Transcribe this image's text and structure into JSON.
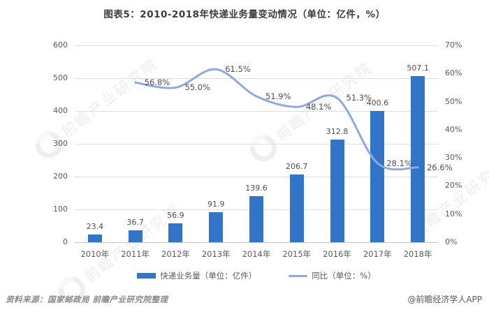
{
  "title": "图表5：2010-2018年快递业务量变动情况（单位：亿件，%）",
  "footer": {
    "source": "资料来源：国家邮政局 前瞻产业研究院整理",
    "brand": "@前瞻经济学人APP"
  },
  "watermark": {
    "text": "前瞻产业研究院"
  },
  "colors": {
    "bar": "#3174C8",
    "line": "#8FAADC",
    "grid": "#dcdcdc",
    "axis_text": "#595959",
    "label_text": "#4d4d4d"
  },
  "legend": [
    {
      "label": "快递业务量（单位：亿件）",
      "marker": "bar"
    },
    {
      "label": "同比（单位：%）",
      "marker": "line"
    }
  ],
  "chart_data": {
    "type": "bar",
    "title": "图表5：2010-2018年快递业务量变动情况（单位：亿件，%）",
    "categories": [
      "2010年",
      "2011年",
      "2012年",
      "2013年",
      "2014年",
      "2015年",
      "2016年",
      "2017年",
      "2018年"
    ],
    "series": [
      {
        "name": "快递业务量（单位：亿件）",
        "type": "bar",
        "axis": "left",
        "values": [
          23.4,
          36.7,
          56.9,
          91.9,
          139.6,
          206.7,
          312.8,
          400.6,
          507.1
        ]
      },
      {
        "name": "同比（单位：%）",
        "type": "line",
        "axis": "right",
        "values": [
          null,
          56.8,
          55.0,
          61.5,
          51.9,
          48.1,
          51.3,
          28.1,
          26.6
        ]
      }
    ],
    "left_axis": {
      "min": 0,
      "max": 600,
      "step": 100
    },
    "right_axis": {
      "min": 0,
      "max": 70,
      "step": 10,
      "suffix": "%"
    },
    "grid": true,
    "legend_position": "bottom",
    "data_labels": true
  }
}
